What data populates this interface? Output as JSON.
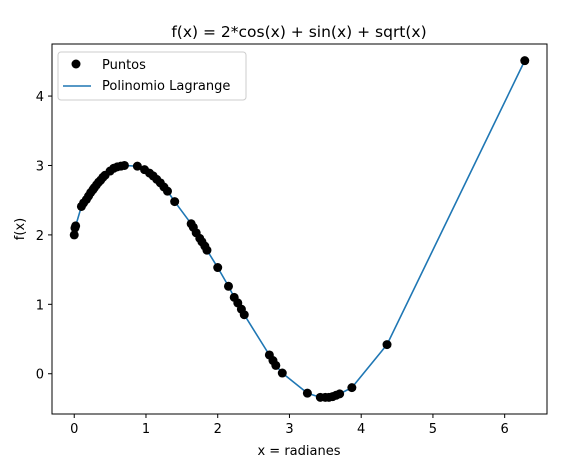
{
  "chart_data": {
    "type": "line+scatter",
    "title": "f(x) = 2*cos(x) + sin(x) + sqrt(x)",
    "xlabel": "x = radianes",
    "ylabel": "f(x)",
    "xlim": [
      -0.31,
      6.59
    ],
    "ylim": [
      -0.58,
      4.75
    ],
    "xticks": [
      0,
      1,
      2,
      3,
      4,
      5,
      6
    ],
    "yticks": [
      0,
      1,
      2,
      3,
      4
    ],
    "grid": false,
    "legend_position": "top-left",
    "series": [
      {
        "name": "Puntos",
        "kind": "scatter",
        "color": "#000000",
        "x": [
          0.0,
          0.01,
          0.02,
          0.1,
          0.13,
          0.17,
          0.2,
          0.23,
          0.26,
          0.28,
          0.31,
          0.34,
          0.37,
          0.4,
          0.43,
          0.5,
          0.55,
          0.6,
          0.65,
          0.7,
          0.88,
          0.98,
          1.05,
          1.1,
          1.15,
          1.2,
          1.25,
          1.3,
          1.4,
          1.63,
          1.66,
          1.7,
          1.75,
          1.78,
          1.82,
          1.85,
          2.0,
          2.15,
          2.23,
          2.28,
          2.33,
          2.37,
          2.72,
          2.77,
          2.81,
          2.9,
          3.25,
          3.43,
          3.5,
          3.55,
          3.6,
          3.65,
          3.7,
          3.87,
          4.36,
          6.28
        ],
        "y": [
          2.0,
          2.1,
          2.13,
          2.41,
          2.46,
          2.51,
          2.56,
          2.61,
          2.65,
          2.68,
          2.72,
          2.76,
          2.79,
          2.83,
          2.86,
          2.92,
          2.96,
          2.98,
          2.99,
          3.0,
          2.99,
          2.94,
          2.89,
          2.85,
          2.8,
          2.75,
          2.69,
          2.63,
          2.48,
          2.16,
          2.11,
          2.03,
          1.95,
          1.9,
          1.84,
          1.78,
          1.53,
          1.26,
          1.1,
          1.02,
          0.93,
          0.85,
          0.27,
          0.19,
          0.12,
          0.01,
          -0.28,
          -0.34,
          -0.34,
          -0.34,
          -0.33,
          -0.31,
          -0.29,
          -0.2,
          0.42,
          4.51
        ]
      },
      {
        "name": "Polinomio Lagrange",
        "kind": "line",
        "color": "#1f77b4"
      }
    ]
  }
}
